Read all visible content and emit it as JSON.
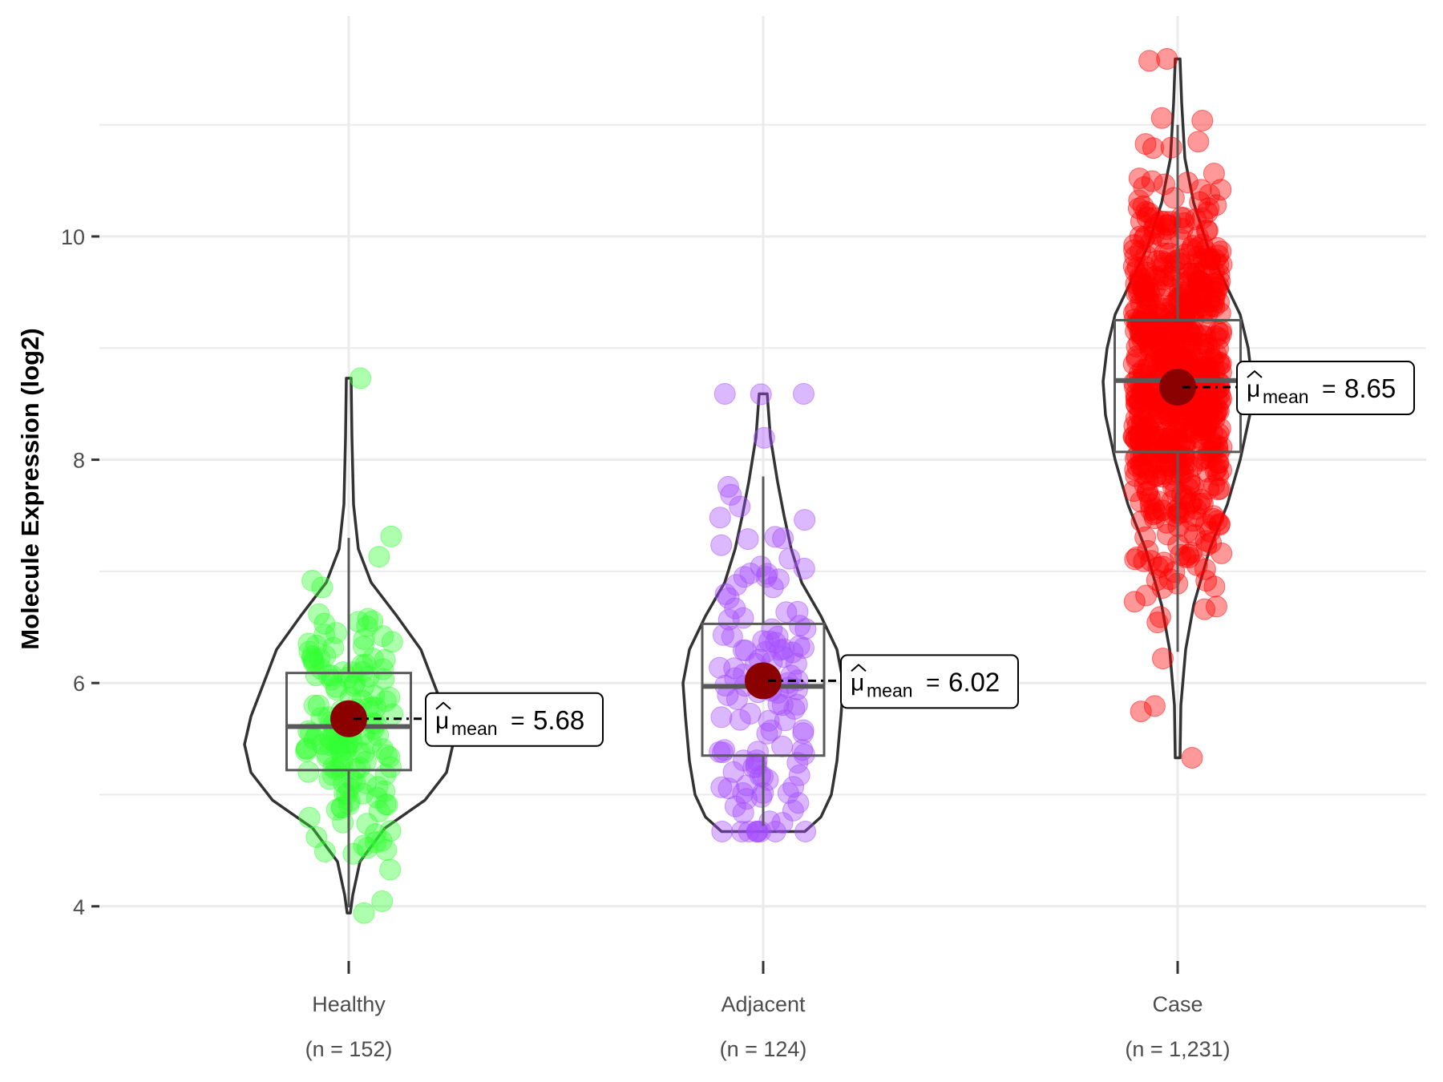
{
  "chart_data": {
    "type": "violin",
    "title": "",
    "xlabel": "",
    "ylabel": "Molecule Expression (log2)",
    "ylim": [
      3.3,
      11.8
    ],
    "yticks": [
      4,
      6,
      8,
      10
    ],
    "ytick_labels": [
      "4",
      "6",
      "8",
      "10"
    ],
    "grid": true,
    "legend": "none",
    "mean_symbol": "μ",
    "mean_subscript": "mean",
    "mean_equals": "=",
    "groups": [
      {
        "name": "Healthy",
        "n_label": "(n = 152)",
        "n": 152,
        "color": "#33ff33",
        "min": 3.94,
        "q1": 5.22,
        "median": 5.61,
        "q3": 6.09,
        "max": 8.73,
        "mean": 5.68,
        "mean_label": "5.68"
      },
      {
        "name": "Adjacent",
        "n_label": "(n = 124)",
        "n": 124,
        "color": "#a64dff",
        "min": 4.67,
        "q1": 5.35,
        "median": 5.97,
        "q3": 6.53,
        "max": 8.59,
        "mean": 6.02,
        "mean_label": "6.02"
      },
      {
        "name": "Case",
        "n_label": "(n = 1,231)",
        "n": 1231,
        "color": "#ff0000",
        "min": 5.33,
        "q1": 8.07,
        "median": 8.71,
        "q3": 9.25,
        "max": 11.59,
        "mean": 8.65,
        "mean_label": "8.65"
      }
    ],
    "mean_point_color": "#8b0000"
  }
}
